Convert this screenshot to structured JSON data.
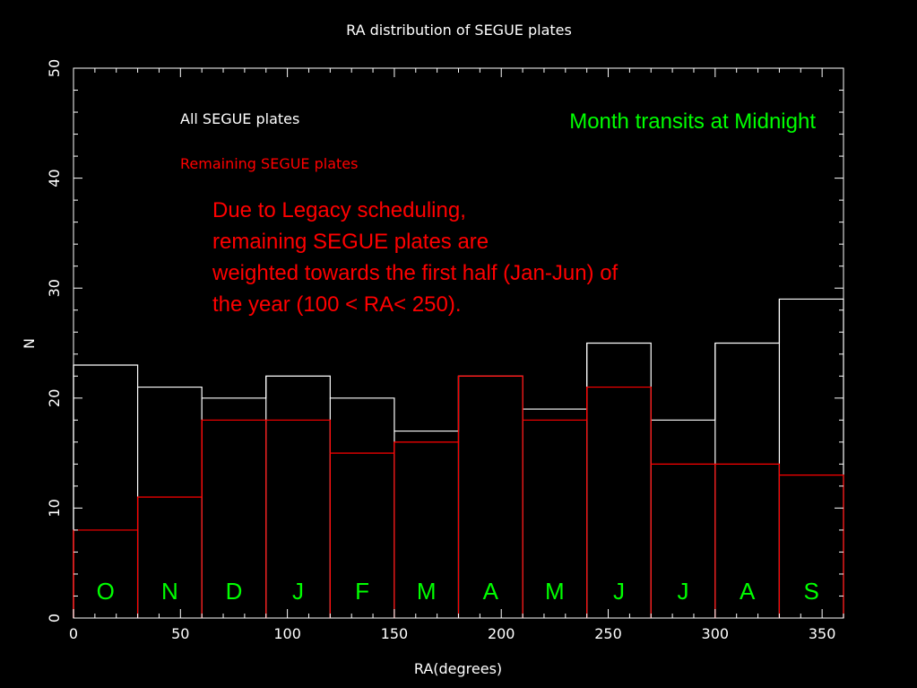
{
  "chart_data": {
    "type": "bar",
    "title": "RA distribution of SEGUE plates",
    "xlabel": "RA(degrees)",
    "ylabel": "N",
    "xlim": [
      0,
      360
    ],
    "ylim": [
      0,
      50
    ],
    "xticks": [
      0,
      50,
      100,
      150,
      200,
      250,
      300,
      350
    ],
    "yticks": [
      0,
      10,
      20,
      30,
      40,
      50
    ],
    "bin_width": 30,
    "bin_edges": [
      0,
      30,
      60,
      90,
      120,
      150,
      180,
      210,
      240,
      270,
      300,
      330,
      360
    ],
    "grid": false,
    "series": [
      {
        "name": "All SEGUE plates",
        "color": "#ffffff",
        "values": [
          23,
          21,
          20,
          22,
          20,
          17,
          22,
          19,
          25,
          18,
          25,
          29
        ]
      },
      {
        "name": "Remaining SEGUE plates",
        "color": "#ff0000",
        "values": [
          8,
          11,
          18,
          18,
          15,
          16,
          22,
          18,
          21,
          14,
          14,
          13
        ]
      }
    ],
    "month_labels": [
      "O",
      "N",
      "D",
      "J",
      "F",
      "M",
      "A",
      "M",
      "J",
      "J",
      "A",
      "S"
    ],
    "annotations": {
      "month_heading": "Month transits at Midnight",
      "note_lines": [
        "Due to Legacy scheduling,",
        "remaining SEGUE plates are",
        "weighted towards the first half (Jan-Jun) of",
        "the year (100 < RA< 250)."
      ]
    },
    "colors": {
      "background": "#000000",
      "axes": "#ffffff",
      "annotation_red": "#ff0000",
      "annotation_green": "#00ff00"
    }
  }
}
